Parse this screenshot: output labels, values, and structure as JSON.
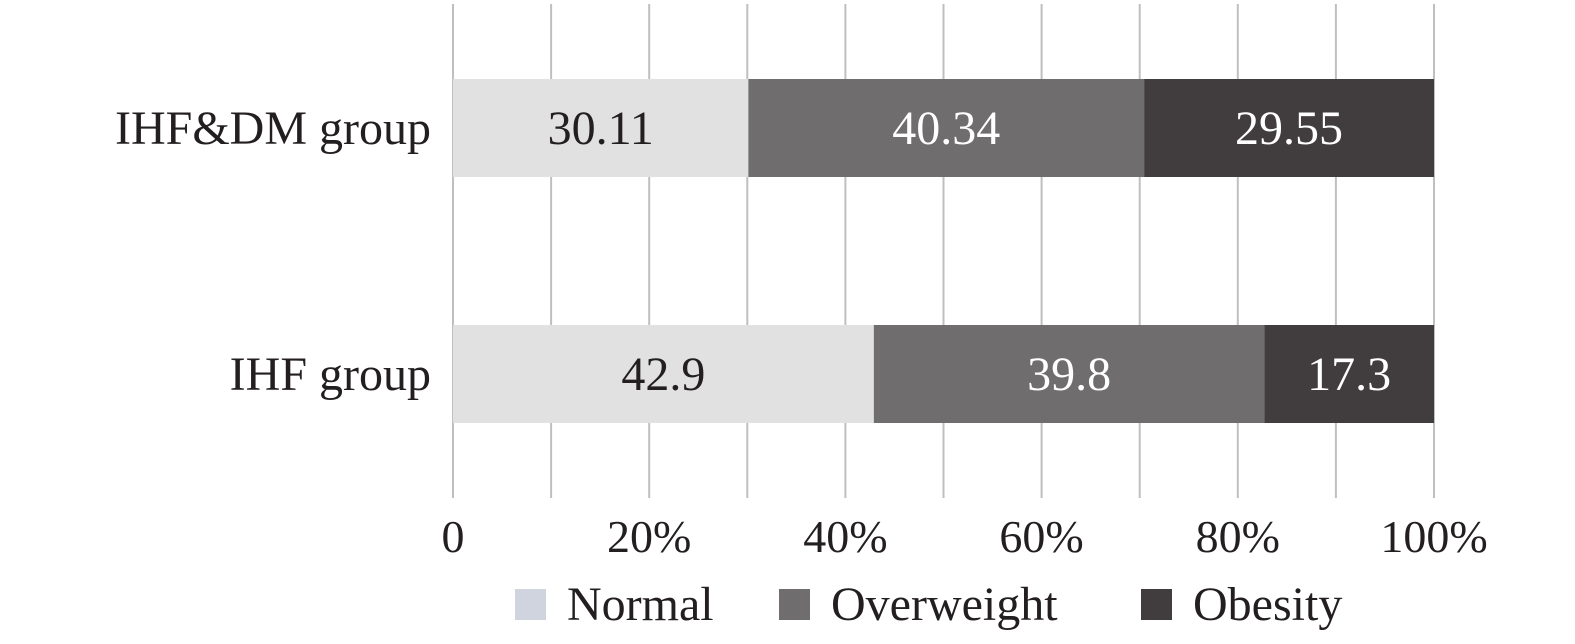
{
  "chart_data": {
    "type": "bar",
    "orientation": "horizontal",
    "stacked": true,
    "categories": [
      "IHF&DM group",
      "IHF group"
    ],
    "series": [
      {
        "name": "Normal",
        "values": [
          30.11,
          42.9
        ],
        "color": "#e1e1e1",
        "label_color": "#231f20",
        "legend_color": "#d0d4de"
      },
      {
        "name": "Overweight",
        "values": [
          40.34,
          39.8
        ],
        "color": "#6f6d6e",
        "label_color": "#ffffff",
        "legend_color": "#6f6d6e"
      },
      {
        "name": "Obesity",
        "values": [
          29.55,
          17.3
        ],
        "color": "#413c3e",
        "label_color": "#ffffff",
        "legend_color": "#413c3e"
      }
    ],
    "data_labels": [
      [
        "30.11",
        "40.34",
        "29.55"
      ],
      [
        "42.9",
        "39.8",
        "17.3"
      ]
    ],
    "xlim": [
      0,
      100
    ],
    "x_ticks": [
      "0",
      "20%",
      "40%",
      "60%",
      "80%",
      "100%"
    ],
    "grid": true,
    "legend_position": "bottom"
  }
}
